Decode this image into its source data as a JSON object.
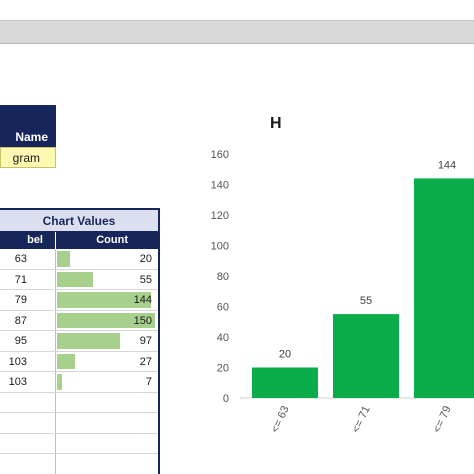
{
  "name_block": {
    "header": "Name",
    "value": "gram"
  },
  "values_table": {
    "title": "Chart Values",
    "col_label": "bel",
    "col_count": "Count",
    "rows": [
      {
        "label": "63",
        "count": "20"
      },
      {
        "label": "71",
        "count": "55"
      },
      {
        "label": "79",
        "count": "144"
      },
      {
        "label": "87",
        "count": "150"
      },
      {
        "label": "95",
        "count": "97"
      },
      {
        "label": "103",
        "count": "27"
      },
      {
        "label": "103",
        "count": "7"
      },
      {
        "label": "",
        "count": ""
      },
      {
        "label": "",
        "count": ""
      },
      {
        "label": "",
        "count": ""
      },
      {
        "label": "",
        "count": ""
      }
    ],
    "bar_color": "#a8d08d"
  },
  "chart_title": "H",
  "chart_data": {
    "type": "bar",
    "categories": [
      "<= 63",
      "<= 71",
      "<= 79"
    ],
    "values": [
      20,
      55,
      144
    ],
    "ylim": [
      0,
      160
    ],
    "yticks": [
      0,
      20,
      40,
      60,
      80,
      100,
      120,
      140,
      160
    ],
    "grid": false,
    "bar_color": "#0aad4a"
  }
}
